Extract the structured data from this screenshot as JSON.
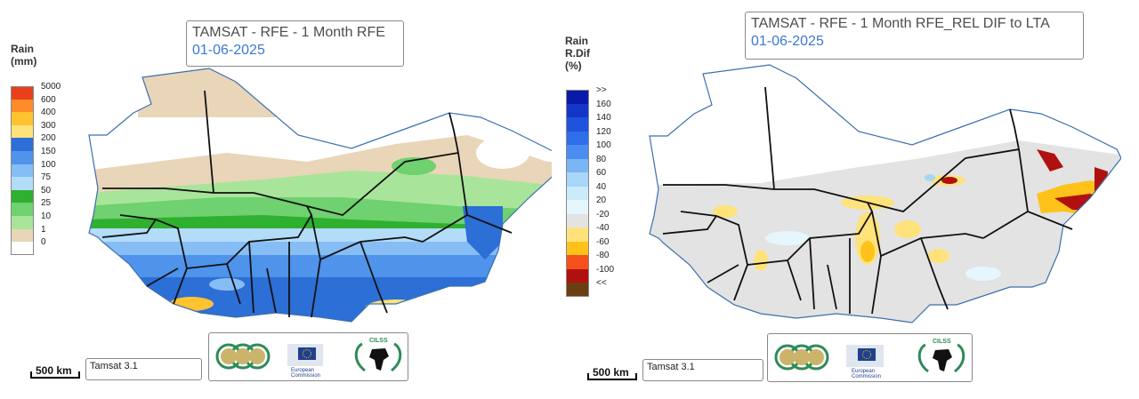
{
  "left": {
    "title": "TAMSAT - RFE - 1 Month RFE",
    "date": "01-06-2025",
    "legend_title_line1": "Rain",
    "legend_title_line2": "(mm)",
    "legend": [
      {
        "label": "5000",
        "color": "#e8401c"
      },
      {
        "label": "600",
        "color": "#ff8c2a"
      },
      {
        "label": "400",
        "color": "#ffc230"
      },
      {
        "label": "300",
        "color": "#ffe27a"
      },
      {
        "label": "200",
        "color": "#2c6fd6"
      },
      {
        "label": "150",
        "color": "#4f93ea"
      },
      {
        "label": "100",
        "color": "#86bdf4"
      },
      {
        "label": "75",
        "color": "#b3dcf9"
      },
      {
        "label": "50",
        "color": "#2fb02f"
      },
      {
        "label": "25",
        "color": "#6fd16f"
      },
      {
        "label": "10",
        "color": "#a8e59a"
      },
      {
        "label": "1",
        "color": "#e9d5b8"
      },
      {
        "label": "0",
        "color": "#ffffff"
      }
    ],
    "model_label": "Tamsat 3.1",
    "scale_label": "500 km"
  },
  "right": {
    "title": "TAMSAT - RFE - 1 Month RFE_REL DIF to LTA",
    "date": "01-06-2025",
    "legend_title_line1": "Rain",
    "legend_title_line2": "R.Dif",
    "legend_title_line3": "(%)",
    "legend": [
      {
        "label": ">>",
        "color": "#0a1aa8"
      },
      {
        "label": "160",
        "color": "#1436c8"
      },
      {
        "label": "140",
        "color": "#1f52dd"
      },
      {
        "label": "120",
        "color": "#2c6fe8"
      },
      {
        "label": "100",
        "color": "#4a8df0"
      },
      {
        "label": "80",
        "color": "#7ab5f5"
      },
      {
        "label": "60",
        "color": "#a7d6f8"
      },
      {
        "label": "40",
        "color": "#c9ebfa"
      },
      {
        "label": "20",
        "color": "#e6f6fd"
      },
      {
        "label": "-20",
        "color": "#e3e3e3"
      },
      {
        "label": "-40",
        "color": "#ffe27a"
      },
      {
        "label": "-60",
        "color": "#ffc21a"
      },
      {
        "label": "-80",
        "color": "#f4501c"
      },
      {
        "label": "-100",
        "color": "#b01010"
      },
      {
        "label": "<<",
        "color": "#6b3e12"
      }
    ],
    "model_label": "Tamsat 3.1",
    "scale_label": "500 km"
  },
  "logos": {
    "partner_text_1": "European",
    "partner_text_2": "Commission",
    "cilss_text": "CILSS"
  },
  "colors": {
    "border": "#111111",
    "outline": "#3c6fae",
    "water": "#ffffff",
    "no_change": "#e3e3e3"
  }
}
